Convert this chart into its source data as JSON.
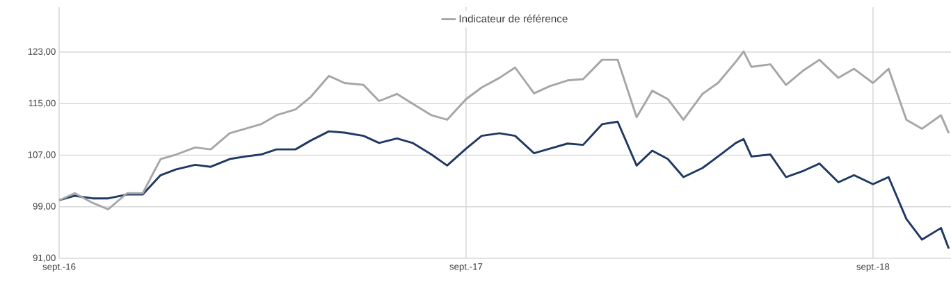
{
  "chart_data": {
    "type": "line",
    "x": [
      "2016-09-01",
      "2016-09-15",
      "2016-10-01",
      "2016-10-15",
      "2016-11-01",
      "2016-11-15",
      "2016-12-01",
      "2016-12-15",
      "2017-01-01",
      "2017-01-15",
      "2017-02-01",
      "2017-02-15",
      "2017-03-01",
      "2017-03-15",
      "2017-04-01",
      "2017-04-15",
      "2017-05-01",
      "2017-05-15",
      "2017-06-01",
      "2017-06-15",
      "2017-07-01",
      "2017-07-15",
      "2017-08-01",
      "2017-08-15",
      "2017-09-01",
      "2017-09-15",
      "2017-10-01",
      "2017-10-15",
      "2017-11-01",
      "2017-11-15",
      "2017-12-01",
      "2017-12-15",
      "2018-01-01",
      "2018-01-15",
      "2018-02-01",
      "2018-02-15",
      "2018-03-01",
      "2018-03-15",
      "2018-04-01",
      "2018-04-15",
      "2018-05-01",
      "2018-05-08",
      "2018-05-15",
      "2018-06-01",
      "2018-06-15",
      "2018-07-01",
      "2018-07-15",
      "2018-08-01",
      "2018-08-15",
      "2018-09-01",
      "2018-09-15",
      "2018-10-01",
      "2018-10-15",
      "2018-11-01",
      "2018-11-08"
    ],
    "series": [
      {
        "color": "#1f3864",
        "values": [
          100.0,
          100.7,
          100.3,
          100.3,
          100.9,
          100.9,
          103.9,
          104.8,
          105.5,
          105.2,
          106.4,
          106.8,
          107.1,
          107.9,
          107.9,
          109.3,
          110.7,
          110.5,
          110.0,
          108.9,
          109.6,
          108.9,
          107.1,
          105.4,
          108.0,
          110.0,
          110.4,
          110.0,
          107.3,
          108.0,
          108.8,
          108.6,
          111.8,
          112.2,
          105.4,
          107.7,
          106.4,
          103.6,
          105.0,
          106.8,
          108.9,
          109.5,
          106.8,
          107.1,
          103.6,
          104.6,
          105.7,
          102.8,
          103.9,
          102.5,
          103.6,
          97.1,
          93.9,
          95.7,
          92.5
        ]
      },
      {
        "name": "Indicateur de référence",
        "color": "#a6a6a6",
        "values": [
          100.0,
          101.1,
          99.6,
          98.6,
          101.1,
          101.1,
          106.4,
          107.1,
          108.2,
          107.9,
          110.4,
          111.1,
          111.8,
          113.2,
          114.1,
          116.1,
          119.3,
          118.2,
          117.9,
          115.4,
          116.5,
          115.0,
          113.2,
          112.5,
          115.7,
          117.5,
          119.0,
          120.6,
          116.6,
          117.7,
          118.6,
          118.8,
          121.8,
          121.8,
          112.9,
          117.0,
          115.7,
          112.5,
          116.5,
          118.2,
          121.5,
          123.1,
          120.7,
          121.1,
          117.9,
          120.2,
          121.8,
          119.0,
          120.4,
          118.2,
          120.4,
          112.5,
          111.1,
          113.2,
          110.4
        ]
      }
    ],
    "xlim": [
      "2016-09-01",
      "2018-11-10"
    ],
    "xticks": [
      {
        "value": "2016-09-01",
        "label": "sept.-16"
      },
      {
        "value": "2017-09-01",
        "label": "sept.-17"
      },
      {
        "value": "2018-09-01",
        "label": "sept.-18"
      }
    ],
    "ylim": [
      91,
      130
    ],
    "yticks": [
      {
        "value": 91,
        "label": "91,00"
      },
      {
        "value": 99,
        "label": "99,00"
      },
      {
        "value": 107,
        "label": "107,00"
      },
      {
        "value": 115,
        "label": "115,00"
      },
      {
        "value": 123,
        "label": "123,00"
      }
    ],
    "grid": true,
    "legend": "top",
    "marker": "none",
    "line_style": "solid"
  }
}
